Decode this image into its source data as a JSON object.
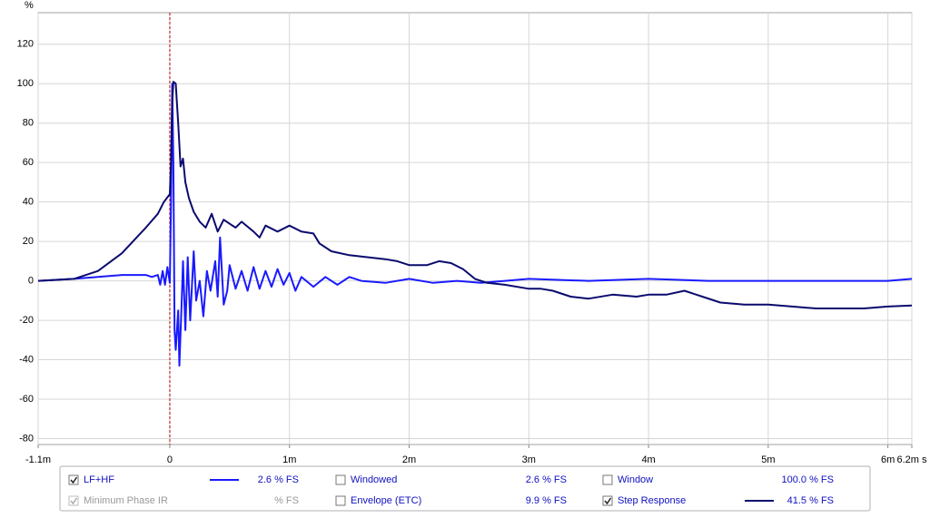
{
  "chart_data": {
    "type": "line",
    "y_label": "%",
    "xlim": [
      -1.1,
      6.2
    ],
    "ylim": [
      -83,
      136
    ],
    "xticks": [
      {
        "value": -1.1,
        "label": "-1.1m"
      },
      0,
      {
        "value": 1,
        "label": "1m"
      },
      {
        "value": 2,
        "label": "2m"
      },
      {
        "value": 3,
        "label": "3m"
      },
      {
        "value": 4,
        "label": "4m"
      },
      {
        "value": 5,
        "label": "5m"
      },
      {
        "value": 6,
        "label": "6m"
      },
      {
        "value": 6.2,
        "label": "6.2m s"
      }
    ],
    "yticks": [
      -80,
      -60,
      -40,
      -20,
      0,
      20,
      40,
      60,
      80,
      100,
      120
    ],
    "grid": true,
    "marker_x": 0,
    "series": [
      {
        "name": "LF+HF",
        "color": "#1a1aff",
        "checked": true,
        "reading": "2.6 % FS",
        "x": [
          -1.1,
          -0.8,
          -0.6,
          -0.4,
          -0.2,
          -0.15,
          -0.1,
          -0.08,
          -0.06,
          -0.04,
          -0.02,
          0,
          0.01,
          0.02,
          0.03,
          0.04,
          0.05,
          0.07,
          0.08,
          0.1,
          0.11,
          0.13,
          0.15,
          0.17,
          0.2,
          0.22,
          0.25,
          0.28,
          0.31,
          0.34,
          0.38,
          0.4,
          0.42,
          0.45,
          0.48,
          0.5,
          0.55,
          0.6,
          0.65,
          0.7,
          0.75,
          0.8,
          0.85,
          0.9,
          0.95,
          1,
          1.05,
          1.1,
          1.2,
          1.3,
          1.4,
          1.5,
          1.6,
          1.8,
          2,
          2.2,
          2.4,
          2.6,
          2.8,
          3,
          3.5,
          4,
          4.5,
          5,
          5.5,
          6,
          6.2
        ],
        "values": [
          0,
          1,
          2,
          3,
          3,
          2,
          3,
          -2,
          5,
          -2,
          7,
          -1,
          40,
          100,
          60,
          -25,
          -35,
          -15,
          -43,
          -10,
          10,
          -25,
          12,
          -20,
          15,
          -10,
          0,
          -18,
          5,
          -5,
          10,
          -8,
          22,
          -12,
          -5,
          8,
          -4,
          5,
          -5,
          7,
          -4,
          5,
          -3,
          6,
          -2,
          4,
          -5,
          2,
          -3,
          2,
          -2,
          2,
          0,
          -1,
          1,
          -1,
          0,
          -1,
          0,
          1,
          0,
          1,
          0,
          0,
          0,
          0,
          1
        ]
      },
      {
        "name": "Step Response",
        "color": "#0a0a6e",
        "checked": true,
        "reading": "41.5 % FS",
        "x": [
          -1.1,
          -0.8,
          -0.6,
          -0.4,
          -0.2,
          -0.1,
          -0.05,
          0,
          0.01,
          0.02,
          0.03,
          0.05,
          0.07,
          0.09,
          0.11,
          0.13,
          0.16,
          0.2,
          0.25,
          0.3,
          0.35,
          0.4,
          0.45,
          0.5,
          0.55,
          0.6,
          0.7,
          0.75,
          0.8,
          0.9,
          1,
          1.1,
          1.2,
          1.25,
          1.35,
          1.5,
          1.65,
          1.8,
          1.9,
          2,
          2.15,
          2.25,
          2.35,
          2.45,
          2.55,
          2.65,
          2.8,
          3,
          3.1,
          3.2,
          3.35,
          3.5,
          3.7,
          3.9,
          4,
          4.15,
          4.3,
          4.45,
          4.6,
          4.8,
          5,
          5.2,
          5.4,
          5.6,
          5.8,
          6,
          6.2
        ],
        "values": [
          0,
          1,
          5,
          14,
          27,
          34,
          40,
          44,
          60,
          90,
          101,
          100,
          80,
          58,
          62,
          50,
          42,
          35,
          30,
          27,
          34,
          25,
          31,
          29,
          27,
          30,
          25,
          22,
          28,
          25,
          28,
          25,
          24,
          19,
          15,
          13,
          12,
          11,
          10,
          8,
          8,
          10,
          9,
          6,
          1,
          -1,
          -2,
          -4,
          -4,
          -5,
          -8,
          -9,
          -7,
          -8,
          -7,
          -7,
          -5,
          -8,
          -11,
          -12,
          -12,
          -13,
          -14,
          -14,
          -14,
          -13,
          -12.5
        ]
      }
    ],
    "other_traces": [
      {
        "label": "Minimum Phase IR",
        "checked": true,
        "enabled": false,
        "reading": "% FS"
      },
      {
        "label": "Windowed",
        "checked": false,
        "enabled": true,
        "reading": "2.6 % FS"
      },
      {
        "label": "Envelope (ETC)",
        "checked": false,
        "enabled": true,
        "reading": "9.9 % FS"
      },
      {
        "label": "Window",
        "checked": false,
        "enabled": true,
        "reading": "100.0 % FS"
      }
    ]
  }
}
